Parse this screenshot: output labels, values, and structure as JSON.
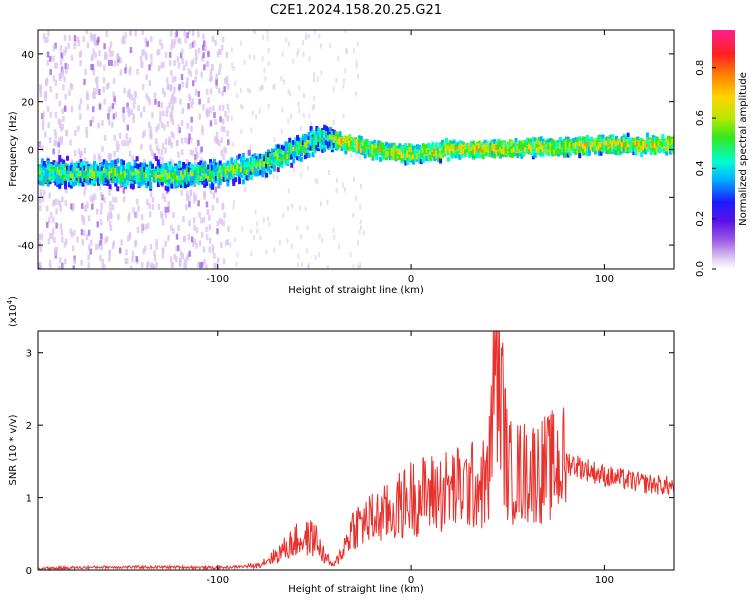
{
  "title": "C2E1.2024.158.20.25.G21",
  "colors": {
    "snr_line": "#e8302c",
    "spectrogram_ramp": [
      "#ffffff",
      "#d9c2f2",
      "#9b5de5",
      "#5a12e8",
      "#1b1bff",
      "#00b7ff",
      "#00ffd0",
      "#19f08a",
      "#31e81f",
      "#b6e800",
      "#ffd400",
      "#ff8c00",
      "#ff2020",
      "#ff1f8c"
    ]
  },
  "chart_data": [
    {
      "type": "heatmap",
      "title": "",
      "xlabel": "Height of straight line (km)",
      "ylabel": "Frequency (Hz)",
      "xlim": [
        -193,
        136
      ],
      "ylim": [
        -50,
        50
      ],
      "xticks": [
        -100,
        0,
        100
      ],
      "yticks": [
        -40,
        -20,
        0,
        20,
        40
      ],
      "grid": false,
      "colorbar": {
        "label": "Normalized spectral amplitude",
        "range": [
          0.0,
          0.95
        ],
        "ticks": [
          0.0,
          0.2,
          0.4,
          0.6,
          0.8
        ]
      },
      "ridge": {
        "x": [
          -193,
          -160,
          -120,
          -100,
          -80,
          -60,
          -45,
          -35,
          -20,
          0,
          20,
          40,
          60,
          80,
          100,
          136
        ],
        "y": [
          -10,
          -10,
          -11,
          -10,
          -7,
          0,
          5,
          3,
          0,
          -2,
          0,
          0,
          1,
          1,
          2,
          2
        ]
      }
    },
    {
      "type": "line",
      "title": "",
      "xlabel": "Height of straight line (km)",
      "ylabel": "SNR (10 * v/v)",
      "ylabel_multiplier": "(x10^4)",
      "xlim": [
        -193,
        136
      ],
      "ylim": [
        0,
        3.3
      ],
      "xticks": [
        -100,
        0,
        100
      ],
      "yticks": [
        0,
        1,
        2,
        3
      ],
      "grid": false,
      "series": [
        {
          "name": "",
          "x": [
            -193,
            -160,
            -120,
            -100,
            -80,
            -70,
            -60,
            -50,
            -45,
            -40,
            -35,
            -30,
            -20,
            -10,
            0,
            10,
            20,
            30,
            40,
            44,
            50,
            60,
            70,
            75,
            80,
            90,
            100,
            110,
            120,
            136
          ],
          "y": [
            0.02,
            0.04,
            0.04,
            0.03,
            0.06,
            0.2,
            0.4,
            0.45,
            0.2,
            0.05,
            0.3,
            0.6,
            0.7,
            0.8,
            1.0,
            1.05,
            1.1,
            1.15,
            1.2,
            3.3,
            1.35,
            1.35,
            1.4,
            1.45,
            1.5,
            1.4,
            1.3,
            1.25,
            1.2,
            1.15
          ]
        }
      ]
    }
  ]
}
